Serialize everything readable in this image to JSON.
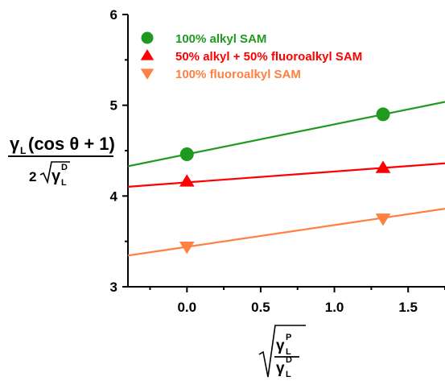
{
  "chart_data": {
    "type": "scatter",
    "title": "",
    "xlim": [
      -0.4,
      1.75
    ],
    "ylim": [
      3,
      6
    ],
    "x_ticks": [
      "0.0",
      "0.5",
      "1.0",
      "1.5"
    ],
    "y_ticks": [
      "3",
      "4",
      "5",
      "6"
    ],
    "ylabel": {
      "gamma": "γ",
      "sub": "L",
      "paren": "(cos θ + 1)",
      "two": "2",
      "sup": "D"
    },
    "xlabel": {
      "gamma": "γ",
      "sub": "L",
      "sup_top": "P",
      "sup_bottom": "D"
    },
    "legend_position": "top-left",
    "series": [
      {
        "name": "100% alkyl SAM",
        "marker": "circle",
        "color": "#1f9a1f",
        "x": [
          0.0,
          1.33
        ],
        "y": [
          4.46,
          4.9
        ],
        "fit": {
          "slope": 0.33,
          "intercept": 4.46
        }
      },
      {
        "name": "50% alkyl + 50% fluoroalkyl SAM",
        "marker": "triangle-up",
        "color": "#ff0000",
        "x": [
          0.0,
          1.33
        ],
        "y": [
          4.16,
          4.31
        ],
        "fit": {
          "slope": 0.12,
          "intercept": 4.15
        }
      },
      {
        "name": "100% fluoroalkyl SAM",
        "marker": "triangle-down",
        "color": "#ff8040",
        "x": [
          0.0,
          1.33
        ],
        "y": [
          3.44,
          3.75
        ],
        "fit": {
          "slope": 0.24,
          "intercept": 3.44
        }
      }
    ]
  }
}
